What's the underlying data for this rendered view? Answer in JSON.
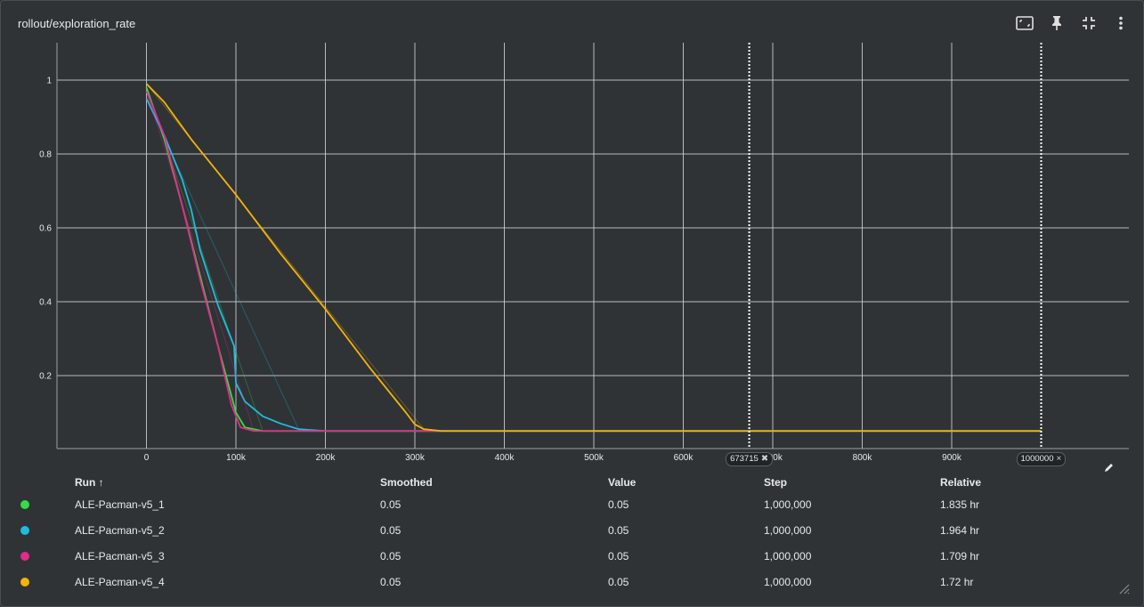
{
  "title": "rollout/exploration_rate",
  "toolbar": {
    "icons": [
      "fit-domain-icon",
      "pin-icon",
      "collapse-icon",
      "more-vert-icon"
    ]
  },
  "markers": [
    {
      "step": 673715,
      "label": "673715",
      "icon": "pin-icon"
    },
    {
      "step": 1000000,
      "label": "1000000",
      "icon": "close-icon"
    }
  ],
  "table": {
    "headers": {
      "run": "Run ↑",
      "smoothed": "Smoothed",
      "value": "Value",
      "step": "Step",
      "relative": "Relative"
    },
    "rows": [
      {
        "color": "#33dd44",
        "run": "ALE-Pacman-v5_1",
        "smoothed": "0.05",
        "value": "0.05",
        "step": "1,000,000",
        "relative": "1.835 hr"
      },
      {
        "color": "#22bbdd",
        "run": "ALE-Pacman-v5_2",
        "smoothed": "0.05",
        "value": "0.05",
        "step": "1,000,000",
        "relative": "1.964 hr"
      },
      {
        "color": "#e6298a",
        "run": "ALE-Pacman-v5_3",
        "smoothed": "0.05",
        "value": "0.05",
        "step": "1,000,000",
        "relative": "1.709 hr"
      },
      {
        "color": "#f5b30a",
        "run": "ALE-Pacman-v5_4",
        "smoothed": "0.05",
        "value": "0.05",
        "step": "1,000,000",
        "relative": "1.72 hr"
      }
    ]
  },
  "chart_data": {
    "type": "line",
    "title": "rollout/exploration_rate",
    "xlabel": "",
    "ylabel": "",
    "xlim": [
      -100000,
      1100000
    ],
    "ylim": [
      -0.05,
      1.08
    ],
    "x_ticks": [
      0,
      100000,
      200000,
      300000,
      400000,
      500000,
      600000,
      700000,
      800000,
      900000
    ],
    "x_tick_labels": [
      "0",
      "100k",
      "200k",
      "300k",
      "400k",
      "500k",
      "600k",
      "700k",
      "800k",
      "900k"
    ],
    "y_ticks": [
      0.2,
      0.4,
      0.6,
      0.8,
      1
    ],
    "y_tick_labels": [
      "0.2",
      "0.4",
      "0.6",
      "0.8",
      "1"
    ],
    "grid": true,
    "series": [
      {
        "name": "ALE-Pacman-v5_1",
        "color": "#33dd44",
        "x": [
          0,
          20000,
          40000,
          60000,
          80000,
          100000,
          110000,
          130000,
          200000,
          1000000
        ],
        "y": [
          0.98,
          0.84,
          0.66,
          0.47,
          0.28,
          0.1,
          0.06,
          0.05,
          0.05,
          0.05
        ]
      },
      {
        "name": "ALE-Pacman-v5_2",
        "color": "#22bbdd",
        "x": [
          0,
          20000,
          40000,
          50000,
          60000,
          80000,
          98000,
          100000,
          110000,
          130000,
          150000,
          170000,
          200000,
          1000000
        ],
        "y": [
          0.95,
          0.85,
          0.73,
          0.65,
          0.54,
          0.39,
          0.28,
          0.18,
          0.13,
          0.09,
          0.07,
          0.055,
          0.05,
          0.05
        ]
      },
      {
        "name": "ALE-Pacman-v5_3",
        "color": "#e6298a",
        "x": [
          0,
          20000,
          40000,
          60000,
          80000,
          95000,
          105000,
          120000,
          200000,
          1000000
        ],
        "y": [
          0.97,
          0.85,
          0.66,
          0.46,
          0.28,
          0.12,
          0.06,
          0.05,
          0.05,
          0.05
        ]
      },
      {
        "name": "ALE-Pacman-v5_4",
        "color": "#f5b30a",
        "x": [
          0,
          20000,
          50000,
          100000,
          150000,
          200000,
          250000,
          290000,
          300000,
          310000,
          330000,
          1000000
        ],
        "y": [
          0.99,
          0.94,
          0.84,
          0.69,
          0.53,
          0.38,
          0.22,
          0.1,
          0.068,
          0.055,
          0.05,
          0.05
        ]
      }
    ]
  }
}
